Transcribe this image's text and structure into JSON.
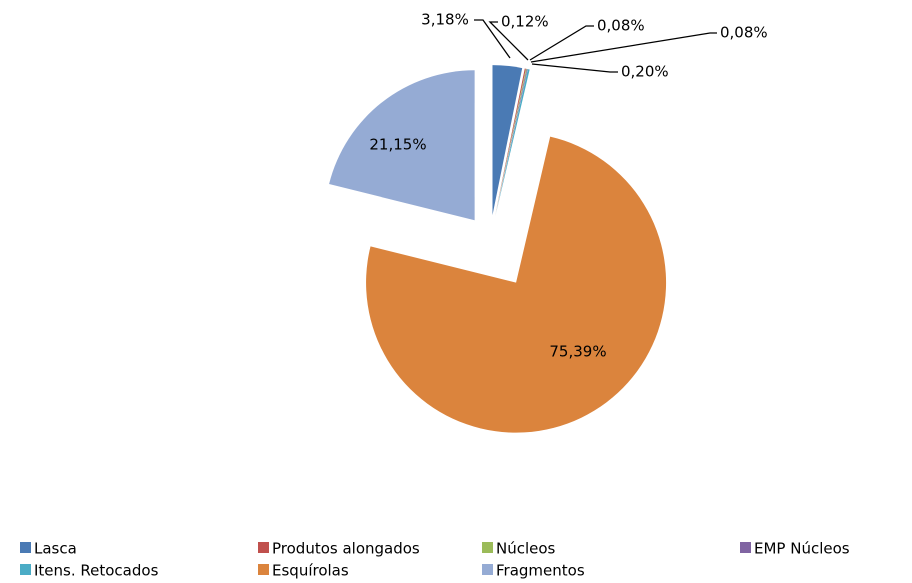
{
  "chart_data": {
    "type": "pie",
    "categories": [
      "Lasca",
      "Produtos alongados",
      "Núcleos",
      "EMP Núcleos",
      "Itens. Retocados",
      "Esquírolas",
      "Fragmentos"
    ],
    "values": [
      3.18,
      0.12,
      0.08,
      0.08,
      0.2,
      75.39,
      21.15
    ],
    "value_labels": [
      "3,18%",
      "0,12%",
      "0,08%",
      "0,08%",
      "0,20%",
      "75,39%",
      "21,15%"
    ],
    "colors": [
      "#4a7ab4",
      "#c0504d",
      "#9bbb59",
      "#8064a2",
      "#4bacc6",
      "#db843d",
      "#95abd4"
    ],
    "legend": "bottom"
  }
}
